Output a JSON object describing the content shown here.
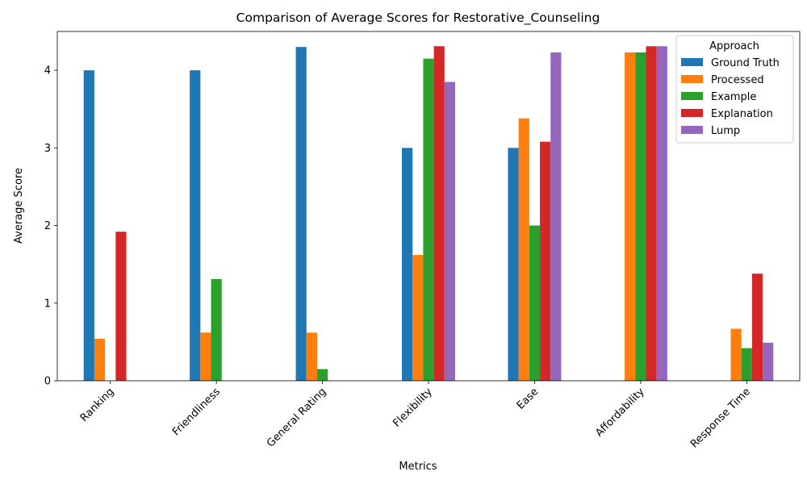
{
  "chart_data": {
    "type": "bar",
    "title": "Comparison of Average Scores for Restorative_Counseling",
    "xlabel": "Metrics",
    "ylabel": "Average Score",
    "ylim": [
      0,
      4.5
    ],
    "yticks": [
      "0",
      "1",
      "2",
      "3",
      "4"
    ],
    "categories": [
      "Ranking",
      "Friendliness",
      "General Rating",
      "Flexibility",
      "Ease",
      "Affordability",
      "Response Time"
    ],
    "legend": {
      "title": "Approach",
      "placement": "top-right"
    },
    "grid": false,
    "series": [
      {
        "name": "Ground Truth",
        "color": "#1f77b4",
        "values": [
          4.0,
          4.0,
          4.3,
          3.0,
          3.0,
          0,
          0
        ]
      },
      {
        "name": "Processed",
        "color": "#ff7f0e",
        "values": [
          0.54,
          0.62,
          0.62,
          1.62,
          3.38,
          4.23,
          0.67
        ]
      },
      {
        "name": "Example",
        "color": "#2ca02c",
        "values": [
          0,
          1.31,
          0.15,
          4.15,
          2.0,
          4.23,
          0.42
        ]
      },
      {
        "name": "Explanation",
        "color": "#d62728",
        "values": [
          1.92,
          0,
          0,
          4.31,
          3.08,
          4.31,
          1.38
        ]
      },
      {
        "name": "Lump",
        "color": "#9467bd",
        "values": [
          0,
          0,
          0,
          3.85,
          4.23,
          4.31,
          0.49
        ]
      }
    ]
  }
}
